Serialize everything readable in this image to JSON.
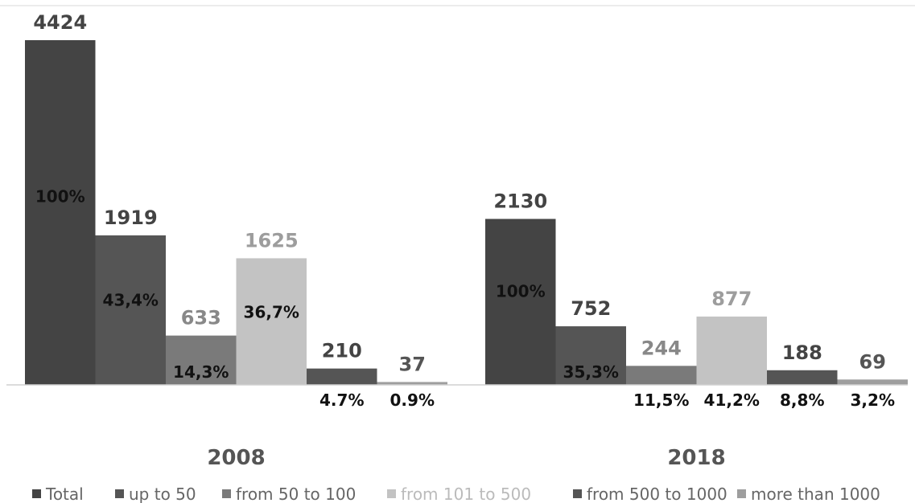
{
  "chart_data": {
    "type": "bar",
    "categories": [
      "2008",
      "2018"
    ],
    "series": [
      {
        "name": "Total",
        "values": [
          4424,
          2130
        ],
        "percent_labels": [
          "100%",
          "100%"
        ],
        "color": "#444444",
        "value_color": "#444444"
      },
      {
        "name": "up to 50",
        "values": [
          1919,
          752
        ],
        "percent_labels": [
          "43,4%",
          "35,3%"
        ],
        "color": "#555555",
        "value_color": "#444444"
      },
      {
        "name": "from 50 to 100",
        "values": [
          633,
          244
        ],
        "percent_labels": [
          "14,3%",
          "11,5%"
        ],
        "color": "#7a7a7a",
        "value_color": "#888888"
      },
      {
        "name": "from 101 to 500",
        "values": [
          1625,
          877
        ],
        "percent_labels": [
          "36,7%",
          "41,2%"
        ],
        "color": "#c3c3c3",
        "value_color": "#9d9d9d"
      },
      {
        "name": "from 500 to 1000",
        "values": [
          210,
          188
        ],
        "percent_labels": [
          "4.7%",
          "8,8%"
        ],
        "color": "#555555",
        "value_color": "#444444"
      },
      {
        "name": "more than 1000",
        "values": [
          37,
          69
        ],
        "percent_labels": [
          "0.9%",
          "3,2%"
        ],
        "color": "#9e9e9e",
        "value_color": "#555555"
      }
    ],
    "ylim": [
      0,
      4424
    ],
    "grid": false,
    "legend_position": "bottom",
    "colors": {
      "axis": "#d0d0d0",
      "legend_text": "#666666",
      "legend_text_light": "#bbbbbb"
    }
  }
}
